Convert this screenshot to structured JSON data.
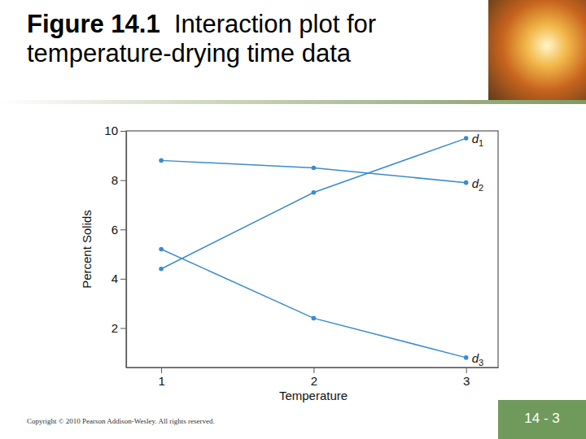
{
  "slide": {
    "figure": "Figure 14.1",
    "footer": "Copyright © 2010 Pearson Addison-Wesley. All rights reserved.",
    "page": "14 - 3"
  },
  "chart_data": {
    "type": "line",
    "title": "Interaction plot for temperature-drying time data",
    "x_label": "Temperature",
    "y_label": "Percent Solids",
    "x": [
      1,
      2,
      3
    ],
    "xlim": [
      0.77,
      3.21
    ],
    "xticks": [
      1,
      2,
      3
    ],
    "ylim": [
      0.4,
      10
    ],
    "yticks": [
      2,
      4,
      6,
      8,
      10
    ],
    "grid": false,
    "marker": "circle",
    "line_style": "solid",
    "series": [
      {
        "name": "d1",
        "color": "#3b8ccb",
        "values": [
          4.4,
          7.5,
          9.7
        ]
      },
      {
        "name": "d2",
        "color": "#3b8ccb",
        "values": [
          8.8,
          8.5,
          7.9
        ]
      },
      {
        "name": "d3",
        "color": "#3b8ccb",
        "values": [
          5.2,
          2.4,
          0.8
        ]
      }
    ]
  }
}
